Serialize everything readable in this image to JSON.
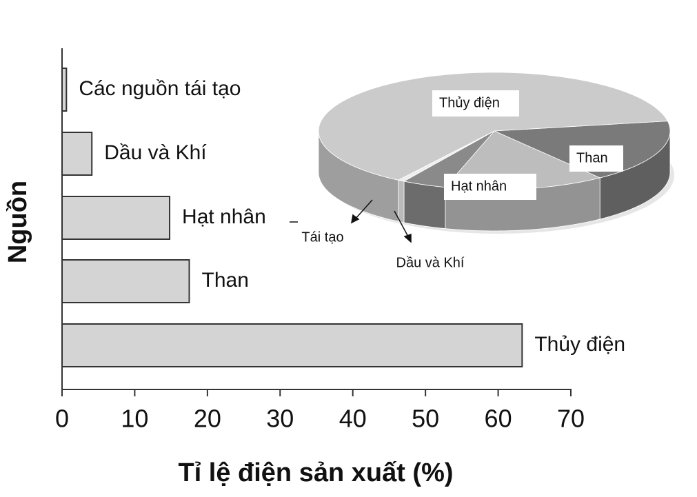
{
  "chart_data": [
    {
      "type": "bar",
      "orientation": "horizontal",
      "categories": [
        "Các nguồn tái tạo",
        "Dầu và Khí",
        "Hạt nhân",
        "Than",
        "Thủy điện"
      ],
      "values": [
        0.6,
        4.1,
        14.8,
        17.5,
        63.3
      ],
      "color": "#d4d4d4",
      "xlim": [
        0,
        70
      ],
      "xticks": [
        0,
        10,
        20,
        30,
        40,
        50,
        60,
        70
      ],
      "xlabel": "Tỉ lệ điện sản xuất (%)",
      "ylabel": "Nguồn"
    },
    {
      "type": "pie",
      "labels": [
        "Than",
        "Hạt nhân",
        "Dầu và Khí",
        "Tái tạo",
        "Thủy điện"
      ],
      "values": [
        17.5,
        14.8,
        4.1,
        0.6,
        63.3
      ],
      "colors": [
        "#7a7a7a",
        "#bdbdbd",
        "#8a8a8a",
        "#eeeeee",
        "#cbcbcb"
      ]
    }
  ]
}
